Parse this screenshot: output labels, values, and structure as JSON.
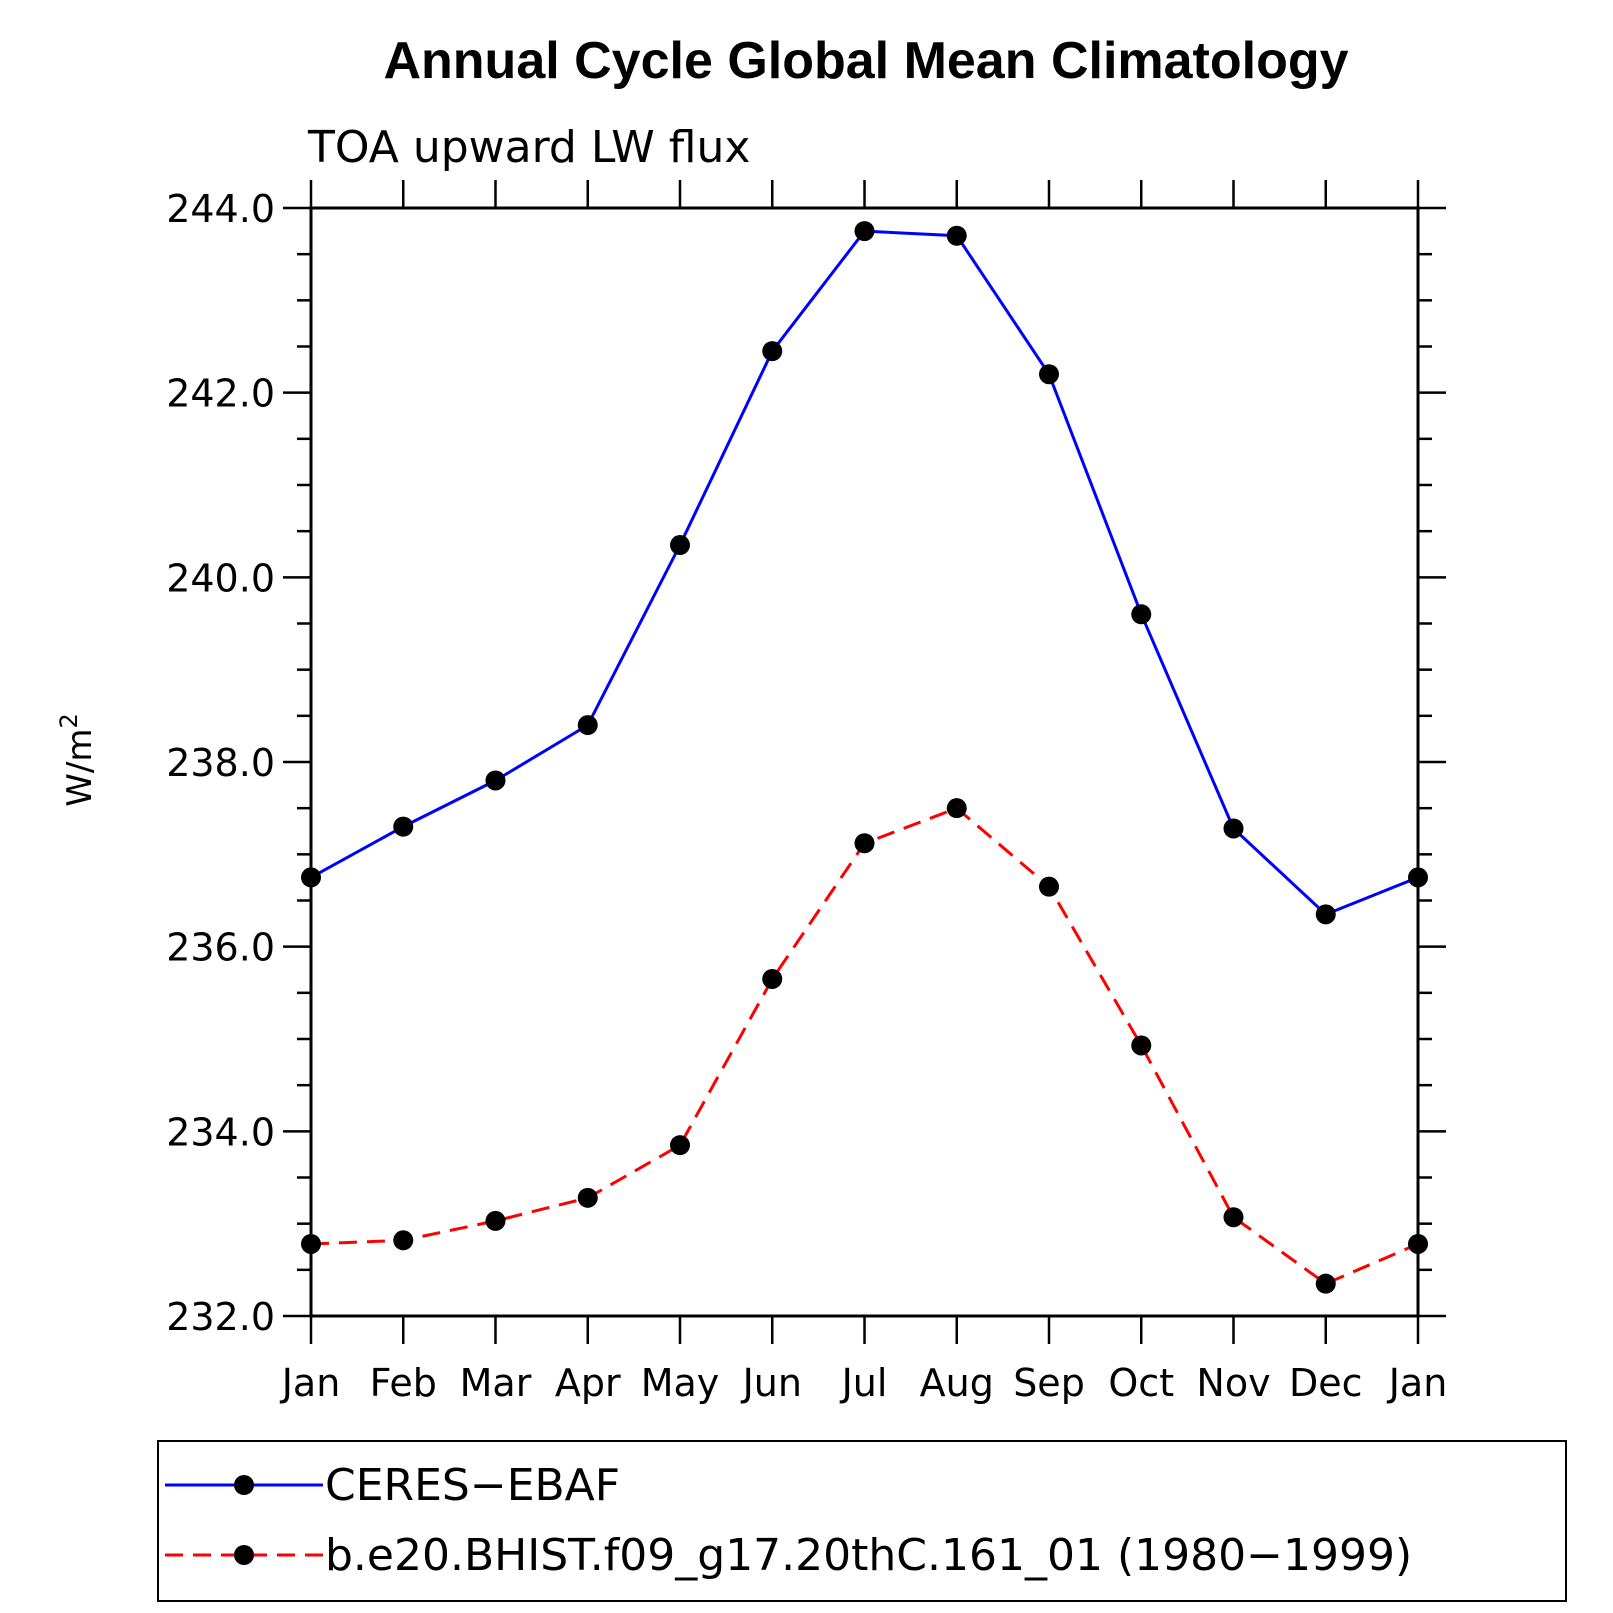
{
  "chart_data": {
    "type": "line",
    "title": "Annual Cycle Global Mean Climatology",
    "subtitle": "TOA upward LW flux",
    "ylabel": "W/m",
    "ylabel_superscript": "2",
    "xlabel": "",
    "categories": [
      "Jan",
      "Feb",
      "Mar",
      "Apr",
      "May",
      "Jun",
      "Jul",
      "Aug",
      "Sep",
      "Oct",
      "Nov",
      "Dec",
      "Jan"
    ],
    "ylim": [
      232.0,
      244.0
    ],
    "yticks": [
      "232.0",
      "234.0",
      "236.0",
      "238.0",
      "240.0",
      "242.0",
      "244.0"
    ],
    "grid": false,
    "legend_position": "bottom",
    "series": [
      {
        "name": "CERES−EBAF",
        "color": "#0000ff",
        "line_style": "solid",
        "marker": "filled-circle",
        "values": [
          236.75,
          237.3,
          237.8,
          238.4,
          240.35,
          242.45,
          243.75,
          243.7,
          242.2,
          239.6,
          237.28,
          236.35,
          236.75
        ]
      },
      {
        "name": "b.e20.BHIST.f09_g17.20thC.161_01 (1980−1999)",
        "color": "#ff0000",
        "line_style": "dashed",
        "marker": "filled-circle",
        "values": [
          232.78,
          232.82,
          233.03,
          233.28,
          233.85,
          235.65,
          237.12,
          237.5,
          236.65,
          234.93,
          233.07,
          232.35,
          232.78
        ]
      }
    ]
  }
}
